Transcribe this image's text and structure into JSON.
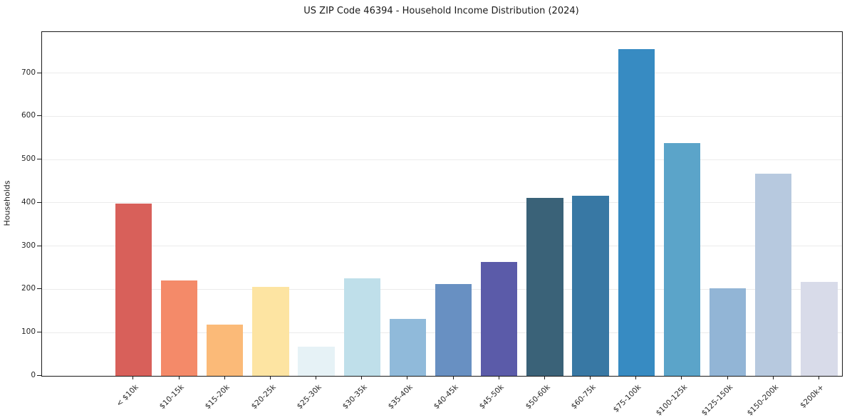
{
  "chart_data": {
    "type": "bar",
    "title": "US ZIP Code 46394 - Household Income Distribution (2024)",
    "xlabel": "",
    "ylabel": "Households",
    "categories": [
      "< $10k",
      "$10-15k",
      "$15-20k",
      "$20-25k",
      "$25-30k",
      "$30-35k",
      "$35-40k",
      "$40-45k",
      "$45-50k",
      "$50-60k",
      "$60-75k",
      "$75-100k",
      "$100-125k",
      "$125-150k",
      "$150-200k",
      "$200k+"
    ],
    "values": [
      398,
      220,
      118,
      205,
      68,
      225,
      132,
      213,
      264,
      411,
      417,
      756,
      538,
      203,
      468,
      218
    ],
    "bar_colors": [
      "#d8605a",
      "#f48a69",
      "#fbba78",
      "#fde4a2",
      "#e6f2f6",
      "#bfdfea",
      "#90bada",
      "#6890c2",
      "#5b5ba9",
      "#3a6278",
      "#3878a4",
      "#378bc2",
      "#5ba4c9",
      "#92b5d6",
      "#b7c9df",
      "#d8dbe9"
    ],
    "yticks": [
      0,
      100,
      200,
      300,
      400,
      500,
      600,
      700
    ],
    "ylim": [
      0,
      795
    ],
    "grid": "horizontal-only",
    "grid_color": "#ebebeb",
    "spine_color": "#1a1a1a",
    "background_color": "#ffffff",
    "legend": "none",
    "bar_width_fraction": 0.8,
    "x_label_rotation_deg": 45
  }
}
